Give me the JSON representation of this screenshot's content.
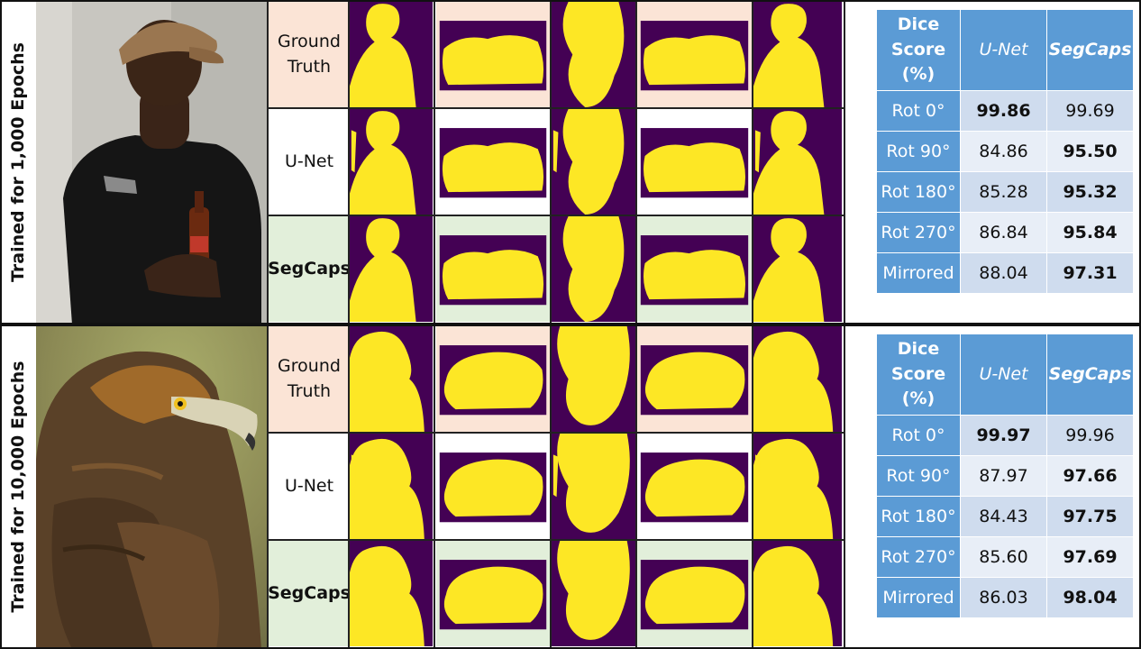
{
  "panels": [
    {
      "side_label": "Trained for 1,000 Epochs",
      "photo_subject": "man-with-cap-and-bottle-photo",
      "row_labels": [
        "Ground\nTruth",
        "U-Net",
        "SegCaps"
      ],
      "table": {
        "header": [
          "Dice\nScore\n(%)",
          "U-Net",
          "SegCaps"
        ],
        "rows": [
          {
            "label": "Rot 0°",
            "unet": "99.86",
            "segcaps": "99.69",
            "best": "unet"
          },
          {
            "label": "Rot 90°",
            "unet": "84.86",
            "segcaps": "95.50",
            "best": "segcaps"
          },
          {
            "label": "Rot 180°",
            "unet": "85.28",
            "segcaps": "95.32",
            "best": "segcaps"
          },
          {
            "label": "Rot 270°",
            "unet": "86.84",
            "segcaps": "95.84",
            "best": "segcaps"
          },
          {
            "label": "Mirrored",
            "unet": "88.04",
            "segcaps": "97.31",
            "best": "segcaps"
          }
        ]
      }
    },
    {
      "side_label": "Trained for 10,000 Epochs",
      "photo_subject": "golden-eagle-photo",
      "row_labels": [
        "Ground\nTruth",
        "U-Net",
        "SegCaps"
      ],
      "table": {
        "header": [
          "Dice\nScore\n(%)",
          "U-Net",
          "SegCaps"
        ],
        "rows": [
          {
            "label": "Rot 0°",
            "unet": "99.97",
            "segcaps": "99.96",
            "best": "unet"
          },
          {
            "label": "Rot 90°",
            "unet": "87.97",
            "segcaps": "97.66",
            "best": "segcaps"
          },
          {
            "label": "Rot 180°",
            "unet": "84.43",
            "segcaps": "97.75",
            "best": "segcaps"
          },
          {
            "label": "Rot 270°",
            "unet": "85.60",
            "segcaps": "97.69",
            "best": "segcaps"
          },
          {
            "label": "Mirrored",
            "unet": "86.03",
            "segcaps": "98.04",
            "best": "segcaps"
          }
        ]
      }
    }
  ],
  "mask_columns": [
    "Rot 0°",
    "Rot 90°",
    "Rot 180°",
    "Rot 270°",
    "Mirrored"
  ],
  "colors": {
    "mask_foreground": "#fde725",
    "mask_background": "#440154",
    "header_blue": "#5b9bd5",
    "row_dark": "#cfdcee",
    "row_light": "#e8eef7",
    "gt_bg": "#fbe4d6",
    "segcaps_bg": "#e2efda"
  }
}
